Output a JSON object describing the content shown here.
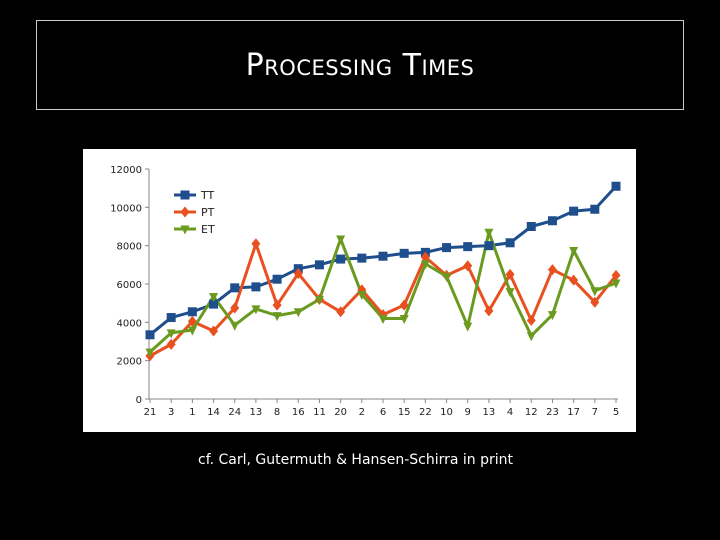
{
  "slide": {
    "title": "Processing Times",
    "caption": "cf. Carl, Gutermuth & Hansen-Schirra in print"
  },
  "chart_data": {
    "type": "line",
    "title": "",
    "xlabel": "",
    "ylabel": "",
    "ylim": [
      0,
      12000
    ],
    "yticks": [
      0,
      2000,
      4000,
      6000,
      8000,
      10000,
      12000
    ],
    "grid": false,
    "legend": "top-left",
    "categories": [
      "21",
      "3",
      "1",
      "14",
      "24",
      "13",
      "8",
      "16",
      "11",
      "20",
      "2",
      "6",
      "15",
      "22",
      "10",
      "9",
      "13",
      "4",
      "12",
      "23",
      "17",
      "7",
      "5"
    ],
    "series": [
      {
        "name": "TT",
        "color": "#1f4e8c",
        "marker": "square",
        "values": [
          3350,
          4250,
          4550,
          4950,
          5800,
          5850,
          6250,
          6800,
          7000,
          7300,
          7350,
          7450,
          7600,
          7650,
          7900,
          7950,
          8000,
          8150,
          9000,
          9300,
          9800,
          9900,
          11100
        ]
      },
      {
        "name": "PT",
        "color": "#e8501f",
        "marker": "diamond",
        "values": [
          2250,
          2850,
          4050,
          3550,
          4750,
          8100,
          4900,
          6550,
          5200,
          4550,
          5700,
          4400,
          4900,
          7400,
          6450,
          6950,
          4600,
          6500,
          4100,
          6750,
          6200,
          5050,
          6450
        ]
      },
      {
        "name": "ET",
        "color": "#6a9a1f",
        "marker": "triangle-down",
        "values": [
          2450,
          3450,
          3600,
          5350,
          3850,
          4700,
          4350,
          4550,
          5200,
          8350,
          5450,
          4200,
          4200,
          7050,
          6400,
          3800,
          8700,
          5600,
          3300,
          4400,
          7750,
          5650,
          6050
        ]
      }
    ]
  }
}
